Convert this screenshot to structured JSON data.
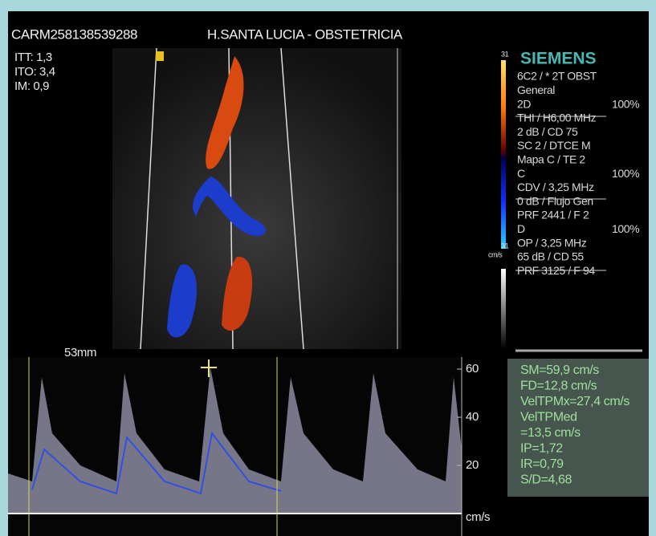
{
  "header": {
    "id": "CARM258138539288",
    "location": "H.SANTA LUCIA - OBSTETRICIA"
  },
  "indices": [
    "ITT: 1,3",
    "ITO: 3,4",
    "IM:  0,9"
  ],
  "depth": "53mm",
  "brand": "SIEMENS",
  "color_scale": {
    "top": "31",
    "bottom": "31",
    "unit": "cm/s"
  },
  "settings": [
    {
      "text": "6C2 / * 2T OBST"
    },
    {
      "text": "General"
    },
    {
      "text": "2D",
      "right": "100%"
    },
    {
      "text": "THI / H6,00 MHz"
    },
    {
      "text": "2 dB / CD 75"
    },
    {
      "text": "SC 2 / DTCE M"
    },
    {
      "text": "Mapa C / TE 2"
    },
    {
      "text": "C",
      "right": "100%"
    },
    {
      "text": "CDV / 3,25 MHz"
    },
    {
      "text": "0 dB / Flujo Gen"
    },
    {
      "text": "PRF 2441 / F 2"
    },
    {
      "text": "D",
      "right": "100%"
    },
    {
      "text": "OP / 3,25 MHz"
    },
    {
      "text": "65 dB / CD 55"
    },
    {
      "text": "PRF 3125 / F 94"
    }
  ],
  "doppler_scale": {
    "ticks": [
      "60",
      "40",
      "20"
    ],
    "unit": "cm/s"
  },
  "measurements": [
    "SM=59,9 cm/s",
    "FD=12,8 cm/s",
    "VelTPMx=27,4 cm/s",
    "VelTPMed",
    "=13,5 cm/s",
    "IP=1,72",
    "IR=0,79",
    "S/D=4,68"
  ]
}
